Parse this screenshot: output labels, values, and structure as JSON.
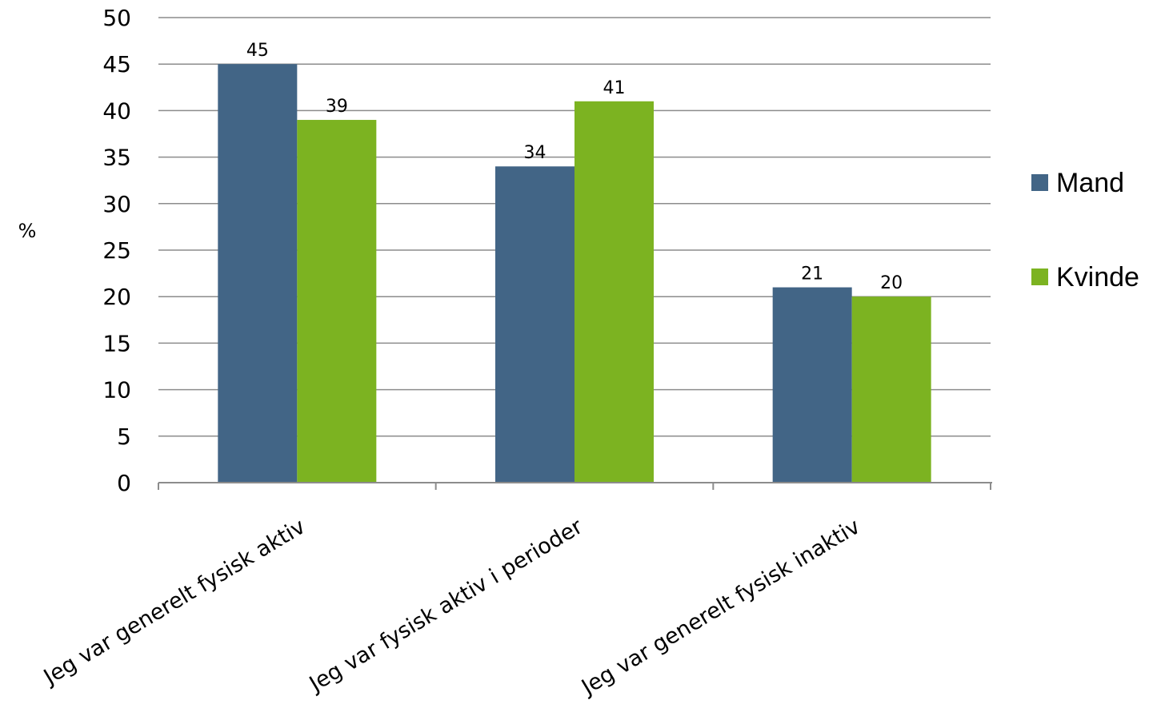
{
  "chart_data": {
    "type": "bar",
    "categories": [
      "Jeg var generelt fysisk aktiv",
      "Jeg var fysisk aktiv i perioder",
      "Jeg var generelt fysisk inaktiv"
    ],
    "series": [
      {
        "name": "Mand",
        "values": [
          45,
          34,
          21
        ],
        "color": "#426586"
      },
      {
        "name": "Kvinde",
        "values": [
          39,
          41,
          20
        ],
        "color": "#7cb321"
      }
    ],
    "ylabel": "%",
    "ylim": [
      0,
      50
    ],
    "yticks": [
      0,
      5,
      10,
      15,
      20,
      25,
      30,
      35,
      40,
      45,
      50
    ],
    "grid": true,
    "legend": "right"
  }
}
